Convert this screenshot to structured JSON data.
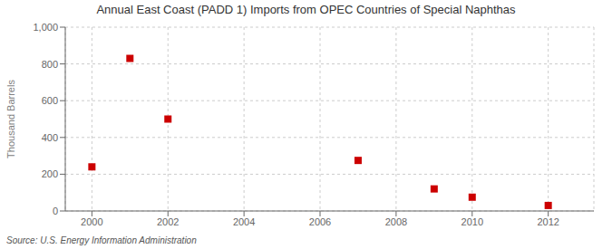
{
  "chart_data": {
    "type": "scatter",
    "title": "Annual East Coast (PADD 1) Imports from OPEC Countries of Special Naphthas",
    "ylabel": "Thousand Barrels",
    "annotations": [
      "Source: U.S. Energy Information Administration"
    ],
    "x": [
      2000,
      2001,
      2002,
      2007,
      2009,
      2010,
      2012
    ],
    "values": [
      240,
      830,
      500,
      275,
      120,
      75,
      30
    ],
    "color": "#cc0000",
    "marker": "square",
    "xlim": [
      1999.3,
      2013.2
    ],
    "ylim": [
      0,
      1000
    ],
    "xticks": [
      2000,
      2002,
      2004,
      2006,
      2008,
      2010,
      2012
    ],
    "yticks": [
      0,
      200,
      400,
      600,
      800,
      {
        "value": 1000,
        "label": "1,000"
      }
    ],
    "grid": true
  }
}
